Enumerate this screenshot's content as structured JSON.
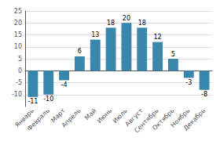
{
  "chart_data": {
    "type": "bar",
    "categories": [
      "Январь",
      "Февраль",
      "Март",
      "Апрель",
      "Май",
      "Июнь",
      "Июль",
      "Август",
      "Сентябрь",
      "Октябрь",
      "Ноябрь",
      "Декабрь"
    ],
    "values": [
      -11,
      -10,
      -4,
      6,
      13,
      18,
      20,
      18,
      12,
      5,
      -3,
      -8
    ],
    "color": "#3a87ad",
    "ylim": [
      -15,
      25
    ],
    "yticks": [
      -10,
      -5,
      0,
      5,
      10,
      15,
      20,
      25
    ],
    "grid": true,
    "data_labels": true
  }
}
